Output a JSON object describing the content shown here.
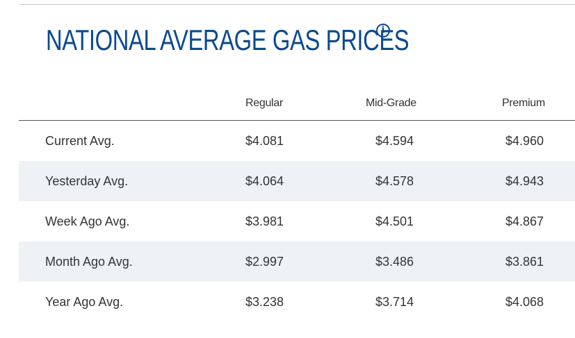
{
  "title": "NATIONAL AVERAGE GAS PRICES",
  "info_icon": {
    "glyph": "i",
    "name": "info-icon"
  },
  "colors": {
    "title": "#0a4a8f",
    "row_shade": "#eef2f7",
    "text": "#333333"
  },
  "table": {
    "columns": [
      "Regular",
      "Mid-Grade",
      "Premium"
    ],
    "rows": [
      {
        "label": "Current Avg.",
        "values": [
          "$4.081",
          "$4.594",
          "$4.960"
        ]
      },
      {
        "label": "Yesterday Avg.",
        "values": [
          "$4.064",
          "$4.578",
          "$4.943"
        ]
      },
      {
        "label": "Week Ago Avg.",
        "values": [
          "$3.981",
          "$4.501",
          "$4.867"
        ]
      },
      {
        "label": "Month Ago Avg.",
        "values": [
          "$2.997",
          "$3.486",
          "$3.861"
        ]
      },
      {
        "label": "Year Ago Avg.",
        "values": [
          "$3.238",
          "$3.714",
          "$4.068"
        ]
      }
    ]
  }
}
